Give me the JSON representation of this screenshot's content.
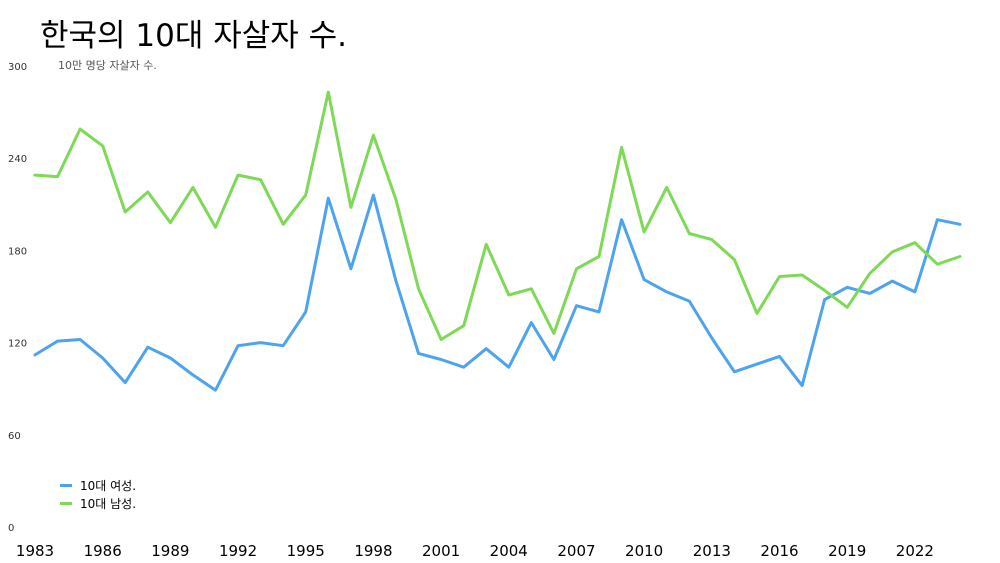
{
  "chart_data": {
    "type": "line",
    "title": "한국의 10대 자살자 수.",
    "subtitle": "10만 명당 자살자 수.",
    "xlabel": "",
    "ylabel": "",
    "xlim": [
      1983,
      2024
    ],
    "ylim": [
      0,
      300
    ],
    "yticks": [
      "0",
      "60",
      "120",
      "180",
      "240",
      "300"
    ],
    "xticks": [
      "1983",
      "1986",
      "1989",
      "1992",
      "1995",
      "1998",
      "2001",
      "2004",
      "2007",
      "2010",
      "2013",
      "2016",
      "2019",
      "2022"
    ],
    "grid": false,
    "legend_position": "bottom-left",
    "x": [
      1983,
      1984,
      1985,
      1986,
      1987,
      1988,
      1989,
      1990,
      1991,
      1992,
      1993,
      1994,
      1995,
      1996,
      1997,
      1998,
      1999,
      2000,
      2001,
      2002,
      2003,
      2004,
      2005,
      2006,
      2007,
      2008,
      2009,
      2010,
      2011,
      2012,
      2013,
      2014,
      2015,
      2016,
      2017,
      2018,
      2019,
      2020,
      2021,
      2022,
      2023,
      2024
    ],
    "series": [
      {
        "name": "10대 여성.",
        "color": "#4da3ee",
        "values": [
          112,
          121,
          122,
          110,
          94,
          117,
          110,
          99,
          89,
          118,
          120,
          118,
          140,
          214,
          168,
          216,
          160,
          113,
          109,
          104,
          116,
          104,
          133,
          109,
          144,
          140,
          200,
          161,
          153,
          147,
          123,
          101,
          106,
          111,
          92,
          148,
          156,
          152,
          160,
          153,
          200,
          197
        ]
      },
      {
        "name": "10대 남성.",
        "color": "#7ed957",
        "values": [
          229,
          228,
          259,
          248,
          205,
          218,
          198,
          221,
          195,
          229,
          226,
          197,
          216,
          283,
          208,
          255,
          213,
          155,
          122,
          131,
          184,
          151,
          155,
          126,
          168,
          176,
          247,
          192,
          221,
          191,
          187,
          174,
          139,
          163,
          164,
          154,
          143,
          165,
          179,
          185,
          171,
          176
        ]
      }
    ]
  }
}
